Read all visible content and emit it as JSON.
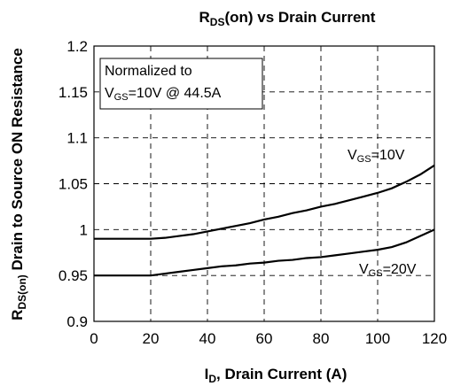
{
  "chart_data": {
    "type": "line",
    "title": {
      "main": "R",
      "sub": "DS",
      "rest": "(on) vs Drain Current"
    },
    "xlabel": {
      "main": "I",
      "sub": "D",
      "rest": ", Drain Current (A)"
    },
    "ylabel": {
      "main": "R",
      "sub": "DS(on)",
      "rest": " Drain to Source ON Resistance"
    },
    "xlim": [
      0,
      120
    ],
    "ylim": [
      0.9,
      1.2
    ],
    "xticks": [
      0,
      20,
      40,
      60,
      80,
      100,
      120
    ],
    "yticks": [
      {
        "value": 0.9,
        "label": "0.9"
      },
      {
        "value": 0.95,
        "label": "0.95"
      },
      {
        "value": 1.0,
        "label": "1"
      },
      {
        "value": 1.05,
        "label": "1.05"
      },
      {
        "value": 1.1,
        "label": "1.1"
      },
      {
        "value": 1.15,
        "label": "1.15"
      },
      {
        "value": 1.2,
        "label": "1.2"
      }
    ],
    "grid": true,
    "annotation": {
      "line1": "Normalized to",
      "line2_main": "V",
      "line2_sub": "GS",
      "line2_rest": "=10V @ 44.5A"
    },
    "series": [
      {
        "label_main": "V",
        "label_sub": "GS",
        "label_rest": "=10V",
        "x": [
          0,
          5,
          10,
          15,
          20,
          25,
          30,
          35,
          40,
          45,
          50,
          55,
          60,
          65,
          70,
          75,
          80,
          85,
          90,
          95,
          100,
          105,
          110,
          115,
          120
        ],
        "y": [
          0.99,
          0.99,
          0.99,
          0.99,
          0.99,
          0.991,
          0.993,
          0.995,
          0.998,
          1.001,
          1.004,
          1.007,
          1.011,
          1.014,
          1.018,
          1.021,
          1.025,
          1.028,
          1.032,
          1.036,
          1.04,
          1.045,
          1.052,
          1.06,
          1.07
        ]
      },
      {
        "label_main": "V",
        "label_sub": "GS",
        "label_rest": "=20V",
        "x": [
          0,
          5,
          10,
          15,
          20,
          25,
          30,
          35,
          40,
          45,
          50,
          55,
          60,
          65,
          70,
          75,
          80,
          85,
          90,
          95,
          100,
          105,
          110,
          115,
          120
        ],
        "y": [
          0.95,
          0.95,
          0.95,
          0.95,
          0.95,
          0.952,
          0.954,
          0.956,
          0.958,
          0.96,
          0.961,
          0.963,
          0.964,
          0.966,
          0.967,
          0.969,
          0.97,
          0.972,
          0.974,
          0.976,
          0.978,
          0.981,
          0.986,
          0.993,
          1.0
        ]
      }
    ]
  }
}
